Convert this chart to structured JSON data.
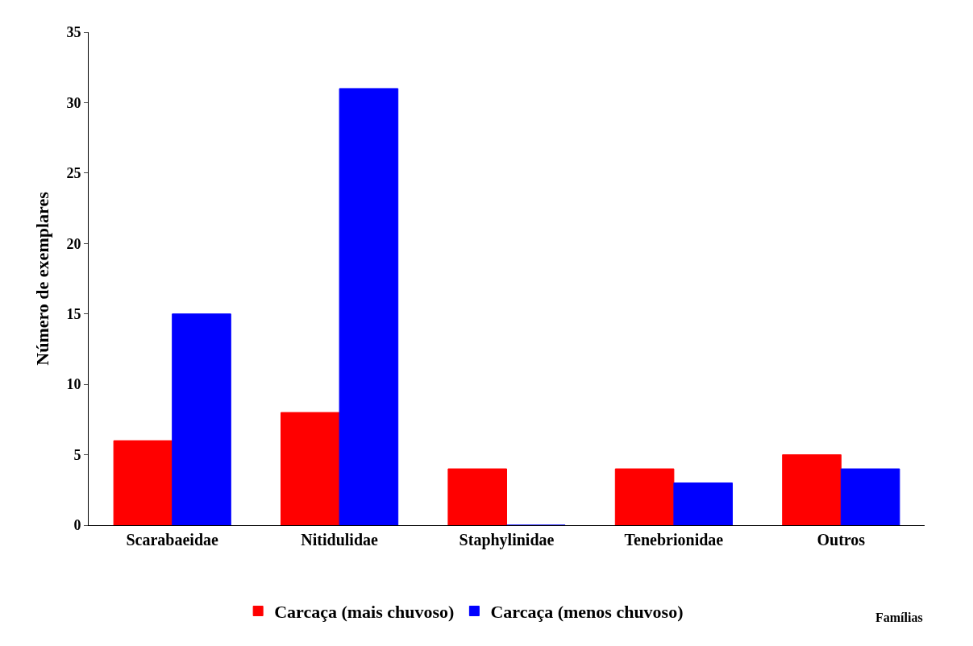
{
  "chart_data": {
    "type": "bar",
    "xlabel": "Famílias",
    "ylabel": "Número de exemplares",
    "categories": [
      "Scarabaeidae",
      "Nitidulidae",
      "Staphylinidae",
      "Tenebrionidae",
      "Outros"
    ],
    "series": [
      {
        "name": "Carcaça (mais chuvoso)",
        "color": "#ff0000",
        "values": [
          6,
          8,
          4,
          4,
          5
        ]
      },
      {
        "name": "Carcaça (menos chuvoso)",
        "color": "#0000ff",
        "values": [
          15,
          31,
          0,
          3,
          4
        ]
      }
    ],
    "ylim": [
      0,
      35
    ],
    "yticks": [
      0,
      5,
      10,
      15,
      20,
      25,
      30,
      35
    ],
    "legend": "bottom"
  }
}
